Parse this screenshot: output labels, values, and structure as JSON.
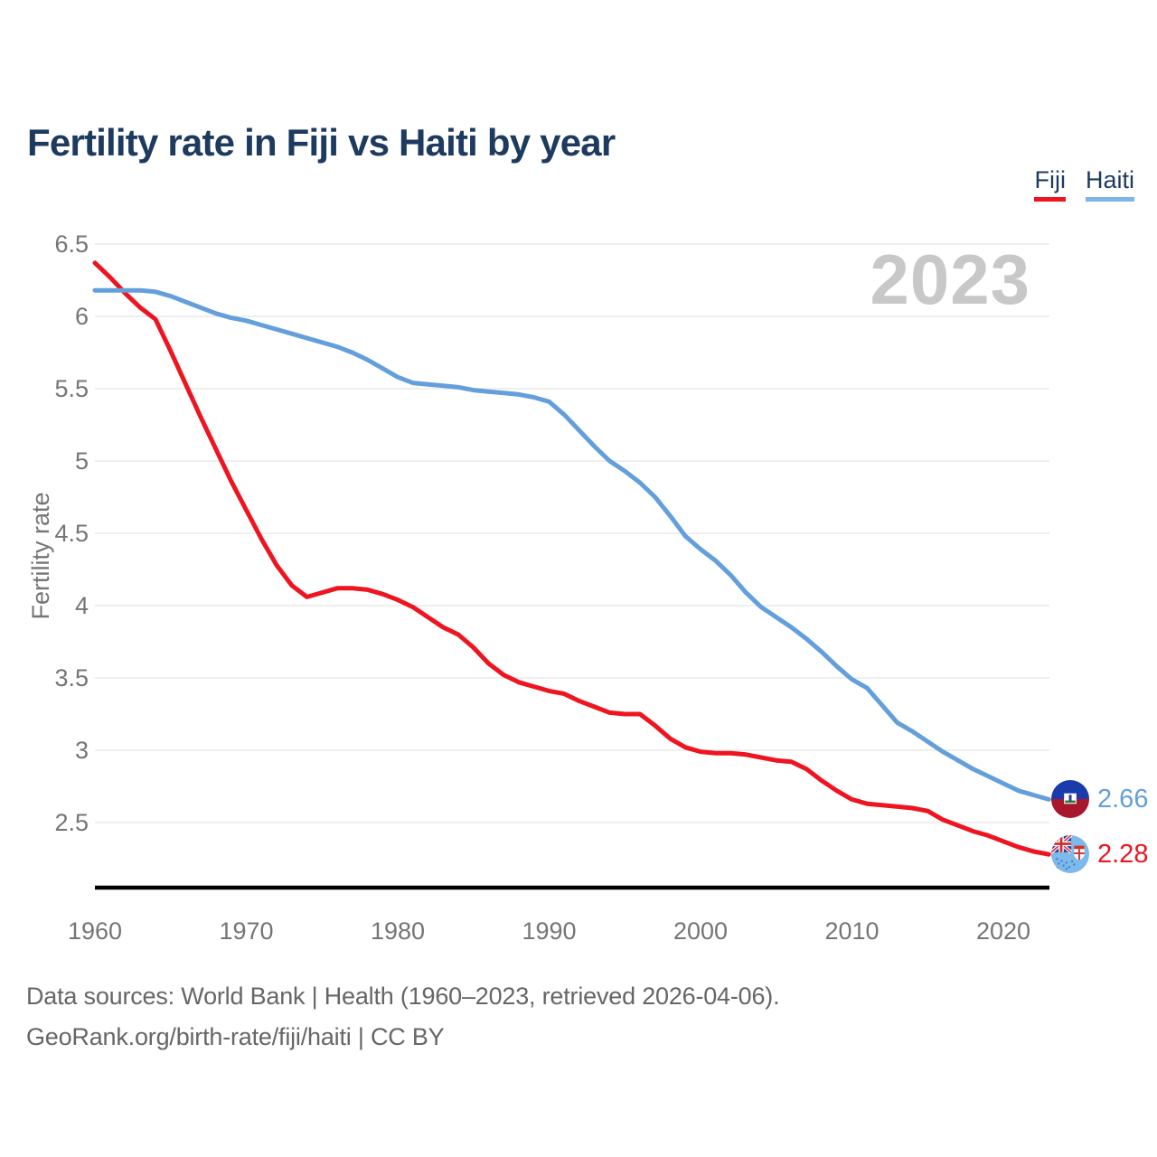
{
  "title": "Fertility rate in Fiji vs Haiti by year",
  "watermark": "2023",
  "legend": [
    {
      "label": "Fiji",
      "color": "#ee1420"
    },
    {
      "label": "Haiti",
      "color": "#7db4ea"
    }
  ],
  "end_labels": [
    {
      "series": "Haiti",
      "value": "2.66",
      "color": "#639fda"
    },
    {
      "series": "Fiji",
      "value": "2.28",
      "color": "#ee1420"
    }
  ],
  "footer": {
    "line1": "Data sources: World Bank | Health (1960–2023, retrieved 2026-04-06).",
    "line2": "GeoRank.org/birth-rate/fiji/haiti | CC BY"
  },
  "chart_data": {
    "type": "line",
    "title": "Fertility rate in Fiji vs Haiti by year",
    "xlabel": "",
    "ylabel": "Fertility rate",
    "xlim": [
      1960,
      2023
    ],
    "ylim": [
      2.05,
      6.5
    ],
    "grid": "horizontal",
    "legend_position": "top-right",
    "x_ticks": [
      1960,
      1970,
      1980,
      1990,
      2000,
      2010,
      2020
    ],
    "y_ticks": [
      2.5,
      3,
      3.5,
      4,
      4.5,
      5,
      5.5,
      6,
      6.5
    ],
    "x": [
      1960,
      1961,
      1962,
      1963,
      1964,
      1965,
      1966,
      1967,
      1968,
      1969,
      1970,
      1971,
      1972,
      1973,
      1974,
      1975,
      1976,
      1977,
      1978,
      1979,
      1980,
      1981,
      1982,
      1983,
      1984,
      1985,
      1986,
      1987,
      1988,
      1989,
      1990,
      1991,
      1992,
      1993,
      1994,
      1995,
      1996,
      1997,
      1998,
      1999,
      2000,
      2001,
      2002,
      2003,
      2004,
      2005,
      2006,
      2007,
      2008,
      2009,
      2010,
      2011,
      2012,
      2013,
      2014,
      2015,
      2016,
      2017,
      2018,
      2019,
      2020,
      2021,
      2022,
      2023
    ],
    "series": [
      {
        "name": "Fiji",
        "color": "#ee1420",
        "end_value": 2.28,
        "values": [
          6.37,
          6.27,
          6.16,
          6.06,
          5.98,
          5.76,
          5.53,
          5.3,
          5.08,
          4.86,
          4.66,
          4.46,
          4.28,
          4.14,
          4.06,
          4.09,
          4.12,
          4.12,
          4.11,
          4.08,
          4.04,
          3.99,
          3.92,
          3.85,
          3.8,
          3.71,
          3.6,
          3.52,
          3.47,
          3.44,
          3.41,
          3.39,
          3.34,
          3.3,
          3.26,
          3.25,
          3.25,
          3.17,
          3.08,
          3.02,
          2.99,
          2.98,
          2.98,
          2.97,
          2.95,
          2.93,
          2.92,
          2.87,
          2.79,
          2.72,
          2.66,
          2.63,
          2.62,
          2.61,
          2.6,
          2.58,
          2.52,
          2.48,
          2.44,
          2.41,
          2.37,
          2.33,
          2.3,
          2.28
        ]
      },
      {
        "name": "Haiti",
        "color": "#639fda",
        "end_value": 2.66,
        "values": [
          6.18,
          6.18,
          6.18,
          6.18,
          6.17,
          6.14,
          6.1,
          6.06,
          6.02,
          5.99,
          5.97,
          5.94,
          5.91,
          5.88,
          5.85,
          5.82,
          5.79,
          5.75,
          5.7,
          5.64,
          5.58,
          5.54,
          5.53,
          5.52,
          5.51,
          5.49,
          5.48,
          5.47,
          5.46,
          5.44,
          5.41,
          5.32,
          5.21,
          5.1,
          5.0,
          4.93,
          4.85,
          4.75,
          4.62,
          4.48,
          4.39,
          4.31,
          4.21,
          4.09,
          3.99,
          3.92,
          3.85,
          3.77,
          3.68,
          3.58,
          3.49,
          3.43,
          3.31,
          3.19,
          3.13,
          3.06,
          2.99,
          2.93,
          2.87,
          2.82,
          2.77,
          2.72,
          2.69,
          2.66
        ]
      }
    ]
  }
}
